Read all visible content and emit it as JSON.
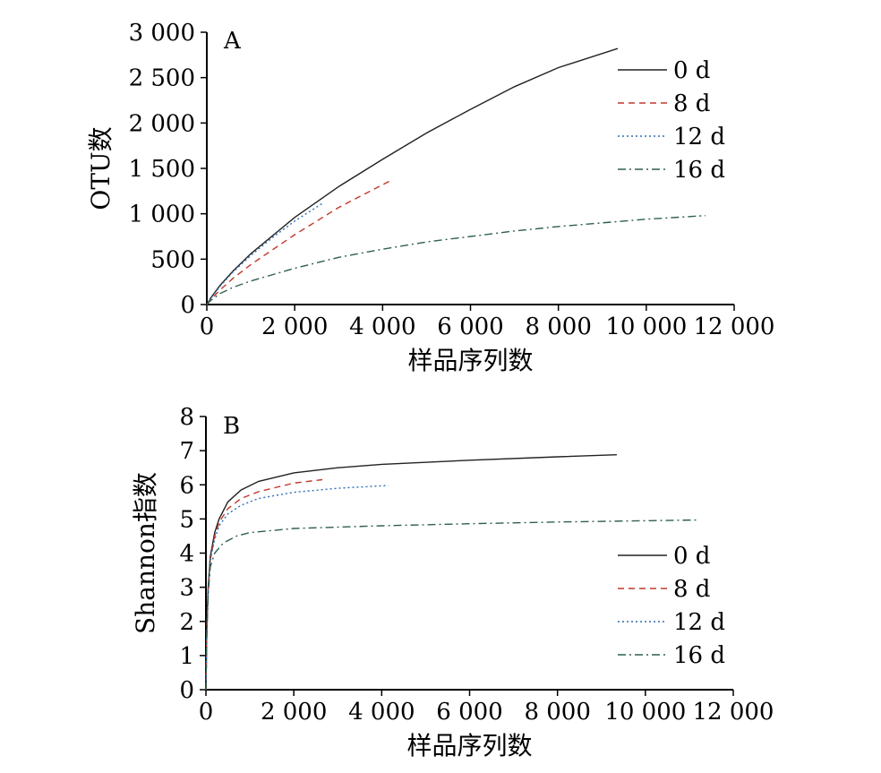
{
  "chart_data": [
    {
      "type": "line",
      "panel_label": "A",
      "xlabel": "样品序列数",
      "ylabel": "OTU数",
      "xlim": [
        0,
        12000
      ],
      "ylim": [
        0,
        3000
      ],
      "xticks": [
        0,
        2000,
        4000,
        6000,
        8000,
        10000,
        12000
      ],
      "xtick_labels": [
        "0",
        "2 000",
        "4 000",
        "6 000",
        "8 000",
        "10 000",
        "12 000"
      ],
      "yticks": [
        0,
        500,
        1000,
        1500,
        2000,
        2500,
        3000
      ],
      "ytick_labels": [
        "0",
        "500",
        "1 000",
        "1 500",
        "2 000",
        "2 500",
        "3 000"
      ],
      "grid": false,
      "legend_position": "top-right",
      "series": [
        {
          "name": "0 d",
          "color": "#222222",
          "dash": "solid",
          "x": [
            0,
            100,
            300,
            600,
            1000,
            2000,
            3000,
            4000,
            5000,
            6000,
            7000,
            8000,
            9350
          ],
          "y": [
            0,
            80,
            210,
            370,
            560,
            960,
            1300,
            1600,
            1890,
            2150,
            2400,
            2610,
            2820
          ]
        },
        {
          "name": "8 d",
          "color": "#c0392b",
          "dash": "dashed",
          "x": [
            0,
            100,
            300,
            600,
            1000,
            2000,
            3000,
            4200
          ],
          "y": [
            0,
            60,
            160,
            290,
            440,
            770,
            1070,
            1370
          ]
        },
        {
          "name": "12 d",
          "color": "#2e6db4",
          "dash": "dotted",
          "x": [
            0,
            100,
            300,
            600,
            1000,
            1500,
            2000,
            2650
          ],
          "y": [
            0,
            75,
            200,
            360,
            540,
            740,
            920,
            1120
          ]
        },
        {
          "name": "16 d",
          "color": "#2f5f4f",
          "dash": "dashdot",
          "x": [
            0,
            100,
            300,
            600,
            1000,
            2000,
            3000,
            4000,
            5000,
            6000,
            7000,
            8000,
            9000,
            10000,
            11350
          ],
          "y": [
            0,
            50,
            120,
            190,
            260,
            400,
            520,
            610,
            690,
            750,
            810,
            860,
            900,
            940,
            980
          ]
        }
      ]
    },
    {
      "type": "line",
      "panel_label": "B",
      "xlabel": "样品序列数",
      "ylabel": "Shannon指数",
      "xlim": [
        0,
        12000
      ],
      "ylim": [
        0,
        8
      ],
      "xticks": [
        0,
        2000,
        4000,
        6000,
        8000,
        10000,
        12000
      ],
      "xtick_labels": [
        "0",
        "2 000",
        "4 000",
        "6 000",
        "8 000",
        "10 000",
        "12 000"
      ],
      "yticks": [
        0,
        1,
        2,
        3,
        4,
        5,
        6,
        7,
        8
      ],
      "ytick_labels": [
        "0",
        "1",
        "2",
        "3",
        "4",
        "5",
        "6",
        "7",
        "8"
      ],
      "grid": false,
      "legend_position": "bottom-right",
      "series": [
        {
          "name": "0 d",
          "color": "#222222",
          "dash": "solid",
          "x": [
            0,
            20,
            50,
            100,
            200,
            300,
            500,
            800,
            1200,
            2000,
            3000,
            4000,
            6000,
            8000,
            9350
          ],
          "y": [
            0,
            1.8,
            3.0,
            3.9,
            4.6,
            5.0,
            5.5,
            5.85,
            6.1,
            6.35,
            6.5,
            6.6,
            6.72,
            6.82,
            6.88
          ]
        },
        {
          "name": "8 d",
          "color": "#c0392b",
          "dash": "dashed",
          "x": [
            0,
            20,
            50,
            100,
            200,
            300,
            500,
            800,
            1200,
            2000,
            2650
          ],
          "y": [
            0,
            1.7,
            2.9,
            3.8,
            4.5,
            4.9,
            5.3,
            5.6,
            5.8,
            6.05,
            6.15
          ]
        },
        {
          "name": "12 d",
          "color": "#2e6db4",
          "dash": "dotted",
          "x": [
            0,
            20,
            50,
            100,
            200,
            300,
            500,
            800,
            1200,
            2000,
            3000,
            4150
          ],
          "y": [
            0,
            1.7,
            2.9,
            3.8,
            4.4,
            4.8,
            5.15,
            5.4,
            5.6,
            5.78,
            5.9,
            5.98
          ]
        },
        {
          "name": "16 d",
          "color": "#2f5f4f",
          "dash": "dashdot",
          "x": [
            0,
            20,
            50,
            100,
            200,
            400,
            700,
            1000,
            2000,
            4000,
            6000,
            8000,
            11200
          ],
          "y": [
            0,
            1.6,
            2.8,
            3.6,
            4.0,
            4.3,
            4.5,
            4.6,
            4.72,
            4.8,
            4.86,
            4.91,
            4.97
          ]
        }
      ]
    }
  ]
}
